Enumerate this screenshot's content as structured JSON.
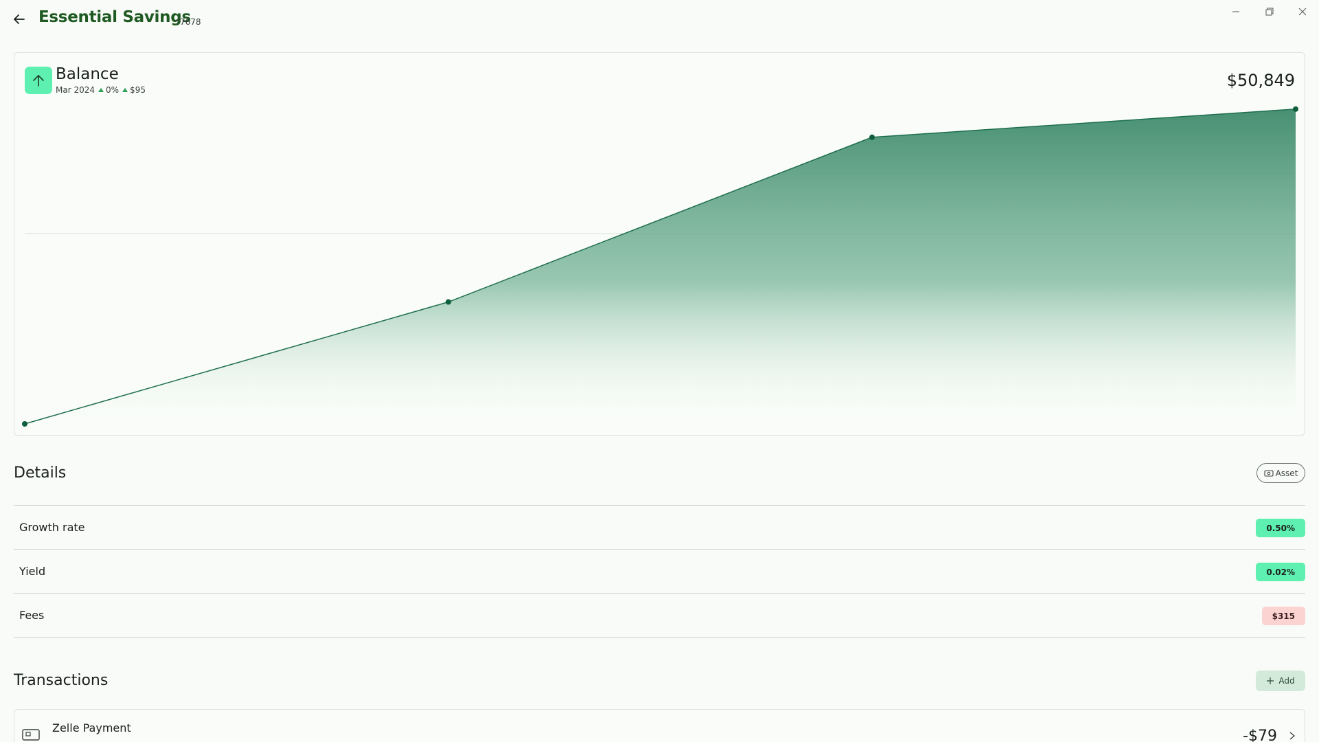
{
  "window": {
    "title": "Essential Savings",
    "suffix": "*7678"
  },
  "balance": {
    "title": "Balance",
    "period": "Mar 2024",
    "change_pct": "0%",
    "change_amt": "$95",
    "value": "$50,849"
  },
  "chart_data": {
    "type": "area",
    "title": "Balance",
    "xlabel": "",
    "ylabel": "",
    "points": [
      0.0,
      0.385,
      0.905,
      0.994
    ],
    "grid": "single horizontal gridline",
    "fill_color": "#4a9478",
    "line_color": "#1e6e4e",
    "point_color": "#0f5e3c"
  },
  "details": {
    "title": "Details",
    "asset_label": "Asset",
    "rows": [
      {
        "label": "Growth rate",
        "value": "0.50%",
        "tone": "green"
      },
      {
        "label": "Yield",
        "value": "0.02%",
        "tone": "green"
      },
      {
        "label": "Fees",
        "value": "$315",
        "tone": "red"
      }
    ]
  },
  "transactions": {
    "title": "Transactions",
    "add_label": "Add",
    "items": [
      {
        "name": "Zelle Payment",
        "amount": "-$79"
      }
    ]
  },
  "colors": {
    "brand": "#1f5a22",
    "accent_green": "#5ef0b0",
    "fee_red": "#fbd3d1",
    "background": "#f8fbf7"
  }
}
